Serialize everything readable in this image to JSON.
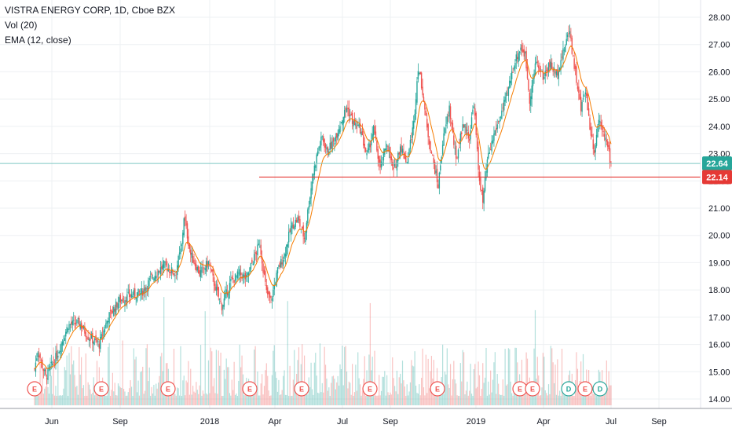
{
  "legend": {
    "title": "VISTRA ENERGY CORP, 1D, Cboe BZX",
    "vol": "Vol (20)",
    "ema": "EMA (12, close)"
  },
  "colors": {
    "up": "#26a69a",
    "down": "#ef5350",
    "ema": "#f57c00",
    "last_price_line": "#7ec8c3",
    "support_line": "#e53935",
    "grid": "#eef0f3",
    "axis_text": "#131722"
  },
  "chart_data": {
    "type": "candlestick",
    "title": "VISTRA ENERGY CORP, 1D, Cboe BZX",
    "ylim": [
      13.8,
      28.3
    ],
    "y_ticks": [
      "14.00",
      "15.00",
      "16.00",
      "17.00",
      "18.00",
      "19.00",
      "20.00",
      "21.00",
      "22.00",
      "23.00",
      "24.00",
      "25.00",
      "26.00",
      "27.00",
      "28.00"
    ],
    "x_ticks": [
      "Jun",
      "Sep",
      "2018",
      "Apr",
      "Jul",
      "Sep",
      "2019",
      "Apr",
      "Jul",
      "Sep"
    ],
    "price_anchors": [
      [
        0,
        15.1
      ],
      [
        3,
        15.8
      ],
      [
        10,
        14.8
      ],
      [
        20,
        15.6
      ],
      [
        30,
        16.7
      ],
      [
        40,
        16.8
      ],
      [
        48,
        16.3
      ],
      [
        58,
        16.0
      ],
      [
        66,
        17.0
      ],
      [
        76,
        17.6
      ],
      [
        86,
        17.8
      ],
      [
        96,
        17.9
      ],
      [
        106,
        18.5
      ],
      [
        116,
        18.9
      ],
      [
        126,
        18.6
      ],
      [
        132,
        19.6
      ],
      [
        134,
        20.7
      ],
      [
        140,
        19.3
      ],
      [
        148,
        18.6
      ],
      [
        156,
        19.0
      ],
      [
        162,
        18.1
      ],
      [
        168,
        17.4
      ],
      [
        176,
        18.3
      ],
      [
        184,
        18.6
      ],
      [
        190,
        18.4
      ],
      [
        196,
        19.1
      ],
      [
        202,
        19.7
      ],
      [
        208,
        17.9
      ],
      [
        212,
        17.6
      ],
      [
        218,
        18.7
      ],
      [
        224,
        19.3
      ],
      [
        230,
        20.3
      ],
      [
        236,
        20.6
      ],
      [
        242,
        19.9
      ],
      [
        246,
        21.2
      ],
      [
        250,
        22.3
      ],
      [
        254,
        23.1
      ],
      [
        258,
        23.6
      ],
      [
        262,
        23.1
      ],
      [
        268,
        23.4
      ],
      [
        274,
        24.1
      ],
      [
        280,
        24.7
      ],
      [
        286,
        24.1
      ],
      [
        292,
        23.9
      ],
      [
        298,
        22.9
      ],
      [
        304,
        23.9
      ],
      [
        310,
        22.4
      ],
      [
        316,
        23.4
      ],
      [
        322,
        22.3
      ],
      [
        328,
        23.3
      ],
      [
        334,
        22.7
      ],
      [
        340,
        24.1
      ],
      [
        344,
        26.2
      ],
      [
        348,
        25.3
      ],
      [
        352,
        23.9
      ],
      [
        358,
        22.6
      ],
      [
        362,
        21.8
      ],
      [
        366,
        23.4
      ],
      [
        372,
        24.7
      ],
      [
        378,
        22.7
      ],
      [
        384,
        24.1
      ],
      [
        390,
        23.6
      ],
      [
        394,
        24.9
      ],
      [
        398,
        22.4
      ],
      [
        402,
        21.2
      ],
      [
        406,
        22.7
      ],
      [
        412,
        23.7
      ],
      [
        418,
        24.4
      ],
      [
        424,
        25.2
      ],
      [
        430,
        26.3
      ],
      [
        436,
        26.9
      ],
      [
        440,
        26.6
      ],
      [
        444,
        25.0
      ],
      [
        450,
        26.4
      ],
      [
        456,
        25.8
      ],
      [
        462,
        26.3
      ],
      [
        468,
        25.9
      ],
      [
        474,
        26.7
      ],
      [
        480,
        27.6
      ],
      [
        482,
        26.8
      ],
      [
        486,
        25.7
      ],
      [
        490,
        24.6
      ],
      [
        494,
        25.4
      ],
      [
        498,
        24.0
      ],
      [
        502,
        23.1
      ],
      [
        506,
        24.3
      ],
      [
        510,
        23.9
      ],
      [
        514,
        23.2
      ],
      [
        517,
        22.6
      ]
    ],
    "last_price": 22.64,
    "support_level": 22.14,
    "ema_period": 12,
    "events": [
      {
        "label": "E",
        "x_frac": 0.0
      },
      {
        "label": "E",
        "x_frac": 0.118
      },
      {
        "label": "E",
        "x_frac": 0.235
      },
      {
        "label": "E",
        "x_frac": 0.385
      },
      {
        "label": "E",
        "x_frac": 0.462
      },
      {
        "label": "E",
        "x_frac": 0.583
      },
      {
        "label": "E",
        "x_frac": 0.705
      },
      {
        "label": "E",
        "x_frac": 0.818
      },
      {
        "label": "E",
        "x_frac": 0.927
      },
      {
        "label": "D",
        "x_frac": 0.947
      },
      {
        "label": "E",
        "x_frac": 0.998
      },
      {
        "label": "D",
        "x_frac": 1.0
      }
    ]
  }
}
